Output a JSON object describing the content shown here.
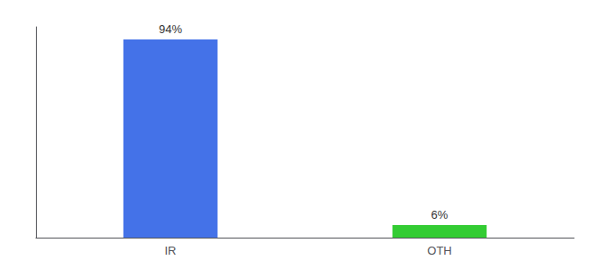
{
  "chart_data": {
    "type": "bar",
    "categories": [
      "IR",
      "OTH"
    ],
    "values": [
      94,
      6
    ],
    "value_labels": [
      "94%",
      "6%"
    ],
    "colors": [
      "#4472e8",
      "#33cc33"
    ],
    "data_labels": true,
    "ylim": [
      0,
      100
    ],
    "tick_labels": "x",
    "grid": false
  }
}
